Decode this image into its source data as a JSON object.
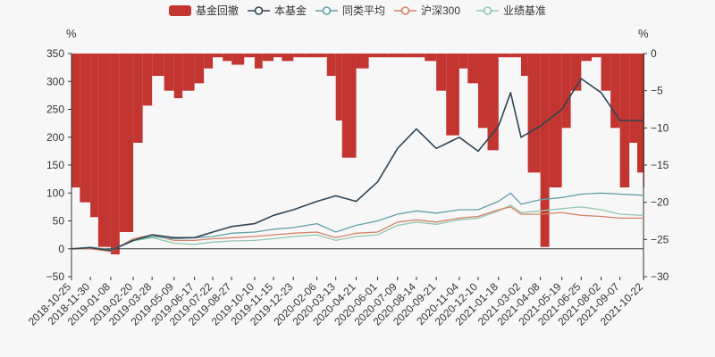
{
  "chart_data": {
    "type": "bar+line",
    "legend": {
      "placement": "top-center",
      "entries": [
        {
          "name": "基金回撤",
          "color": "#c23531",
          "kind": "bar"
        },
        {
          "name": "本基金",
          "color": "#2f4554",
          "kind": "line"
        },
        {
          "name": "同类平均",
          "color": "#61a0a8",
          "kind": "line"
        },
        {
          "name": "沪深300",
          "color": "#d48265",
          "kind": "line"
        },
        {
          "name": "业绩基准",
          "color": "#91c7ae",
          "kind": "line"
        }
      ]
    },
    "left_axis": {
      "unit": "%",
      "min": -50,
      "max": 350,
      "ticks": [
        "350",
        "300",
        "250",
        "200",
        "150",
        "100",
        "50",
        "0",
        "−50"
      ]
    },
    "right_axis": {
      "unit": "%",
      "min": -30,
      "max": 0,
      "ticks": [
        "0",
        "−5",
        "−10",
        "−15",
        "−20",
        "−25",
        "−30"
      ]
    },
    "x_tick_labels": [
      "2018-10-25",
      "2018-11-30",
      "2019-01-08",
      "2019-02-20",
      "2019-03-28",
      "2019-05-09",
      "2019-06-17",
      "2019-07-22",
      "2019-08-27",
      "2019-10-10",
      "2019-11-15",
      "2019-12-23",
      "2020-02-06",
      "2020-03-13",
      "2020-04-21",
      "2020-06-01",
      "2020-07-09",
      "2020-08-14",
      "2020-09-21",
      "2020-11-04",
      "2020-12-10",
      "2021-01-18",
      "2021-03-02",
      "2021-04-08",
      "2021-05-19",
      "2021-06-25",
      "2021-08-02",
      "2021-09-07",
      "2021-10-22"
    ],
    "series": [
      {
        "name": "本基金",
        "axis": "left",
        "x": [
          "2018-10-25",
          "2018-11-30",
          "2019-01-08",
          "2019-02-20",
          "2019-03-28",
          "2019-05-09",
          "2019-06-17",
          "2019-07-22",
          "2019-08-27",
          "2019-10-10",
          "2019-11-15",
          "2019-12-23",
          "2020-02-06",
          "2020-03-13",
          "2020-04-21",
          "2020-06-01",
          "2020-07-09",
          "2020-08-14",
          "2020-09-21",
          "2020-11-04",
          "2020-12-10",
          "2021-01-18",
          "2021-02-10",
          "2021-03-02",
          "2021-04-08",
          "2021-05-19",
          "2021-06-25",
          "2021-08-02",
          "2021-09-07",
          "2021-10-22"
        ],
        "values": [
          0,
          2,
          -3,
          15,
          25,
          20,
          20,
          30,
          40,
          45,
          60,
          70,
          85,
          95,
          85,
          120,
          180,
          215,
          180,
          200,
          175,
          220,
          280,
          200,
          220,
          250,
          305,
          280,
          230,
          230
        ]
      },
      {
        "name": "同类平均",
        "axis": "left",
        "x": [
          "2018-10-25",
          "2018-11-30",
          "2019-01-08",
          "2019-02-20",
          "2019-03-28",
          "2019-05-09",
          "2019-06-17",
          "2019-07-22",
          "2019-08-27",
          "2019-10-10",
          "2019-11-15",
          "2019-12-23",
          "2020-02-06",
          "2020-03-13",
          "2020-04-21",
          "2020-06-01",
          "2020-07-09",
          "2020-08-14",
          "2020-09-21",
          "2020-11-04",
          "2020-12-10",
          "2021-01-18",
          "2021-02-10",
          "2021-03-02",
          "2021-04-08",
          "2021-05-19",
          "2021-06-25",
          "2021-08-02",
          "2021-09-07",
          "2021-10-22"
        ],
        "values": [
          0,
          3,
          -2,
          15,
          22,
          18,
          20,
          22,
          28,
          30,
          35,
          38,
          45,
          30,
          42,
          50,
          62,
          68,
          64,
          70,
          70,
          85,
          100,
          80,
          88,
          92,
          98,
          100,
          98,
          96
        ]
      },
      {
        "name": "沪深300",
        "axis": "left",
        "x": [
          "2018-10-25",
          "2018-11-30",
          "2019-01-08",
          "2019-02-20",
          "2019-03-28",
          "2019-05-09",
          "2019-06-17",
          "2019-07-22",
          "2019-08-27",
          "2019-10-10",
          "2019-11-15",
          "2019-12-23",
          "2020-02-06",
          "2020-03-13",
          "2020-04-21",
          "2020-06-01",
          "2020-07-09",
          "2020-08-14",
          "2020-09-21",
          "2020-11-04",
          "2020-12-10",
          "2021-01-18",
          "2021-02-10",
          "2021-03-02",
          "2021-04-08",
          "2021-05-19",
          "2021-06-25",
          "2021-08-02",
          "2021-09-07",
          "2021-10-22"
        ],
        "values": [
          0,
          0,
          -5,
          18,
          25,
          15,
          15,
          18,
          20,
          22,
          25,
          28,
          30,
          20,
          28,
          30,
          48,
          52,
          48,
          55,
          58,
          70,
          75,
          62,
          62,
          65,
          60,
          58,
          55,
          55
        ]
      },
      {
        "name": "业绩基准",
        "axis": "left",
        "x": [
          "2018-10-25",
          "2018-11-30",
          "2019-01-08",
          "2019-02-20",
          "2019-03-28",
          "2019-05-09",
          "2019-06-17",
          "2019-07-22",
          "2019-08-27",
          "2019-10-10",
          "2019-11-15",
          "2019-12-23",
          "2020-02-06",
          "2020-03-13",
          "2020-04-21",
          "2020-06-01",
          "2020-07-09",
          "2020-08-14",
          "2020-09-21",
          "2020-11-04",
          "2020-12-10",
          "2021-01-18",
          "2021-02-10",
          "2021-03-02",
          "2021-04-08",
          "2021-05-19",
          "2021-06-25",
          "2021-08-02",
          "2021-09-07",
          "2021-10-22"
        ],
        "values": [
          0,
          2,
          -3,
          14,
          20,
          10,
          8,
          12,
          14,
          15,
          18,
          22,
          25,
          15,
          22,
          25,
          42,
          48,
          44,
          52,
          55,
          68,
          78,
          65,
          68,
          72,
          75,
          70,
          62,
          60
        ]
      },
      {
        "name": "基金回撤",
        "axis": "right",
        "kind": "bar",
        "x": [
          "2018-10-25",
          "2018-11-10",
          "2018-11-30",
          "2018-12-15",
          "2019-01-08",
          "2019-01-25",
          "2019-02-20",
          "2019-03-10",
          "2019-03-28",
          "2019-04-20",
          "2019-05-09",
          "2019-05-25",
          "2019-06-17",
          "2019-07-05",
          "2019-07-22",
          "2019-08-10",
          "2019-08-27",
          "2019-09-20",
          "2019-10-10",
          "2019-10-25",
          "2019-11-15",
          "2019-12-01",
          "2019-12-23",
          "2020-01-15",
          "2020-02-06",
          "2020-02-25",
          "2020-03-13",
          "2020-03-25",
          "2020-04-21",
          "2020-05-15",
          "2020-06-01",
          "2020-06-20",
          "2020-07-09",
          "2020-07-25",
          "2020-08-14",
          "2020-08-30",
          "2020-09-21",
          "2020-10-10",
          "2020-11-04",
          "2020-11-20",
          "2020-12-10",
          "2020-12-28",
          "2021-01-18",
          "2021-02-10",
          "2021-03-02",
          "2021-03-15",
          "2021-04-08",
          "2021-04-25",
          "2021-05-19",
          "2021-06-05",
          "2021-06-25",
          "2021-07-15",
          "2021-08-02",
          "2021-08-20",
          "2021-09-07",
          "2021-09-25",
          "2021-10-10",
          "2021-10-22"
        ],
        "values": [
          -18,
          -20,
          -22,
          -26,
          -27,
          -24,
          -12,
          -7,
          -3,
          -5,
          -6,
          -5,
          -4,
          -2,
          -0.5,
          -1,
          -1.5,
          -0.5,
          -2,
          -1,
          -0.5,
          -1,
          -0.5,
          -0.5,
          -0.5,
          -3,
          -9,
          -14,
          -2,
          -0.5,
          -0.5,
          -0.5,
          -0.5,
          -0.5,
          -0.5,
          -1,
          -5,
          -11,
          -2,
          -4,
          -10,
          -13,
          -0.5,
          -0.5,
          -3,
          -16,
          -26,
          -18,
          -10,
          -5,
          -1,
          -0.5,
          -5,
          -10,
          -18,
          -12,
          -16,
          -18
        ]
      }
    ]
  }
}
